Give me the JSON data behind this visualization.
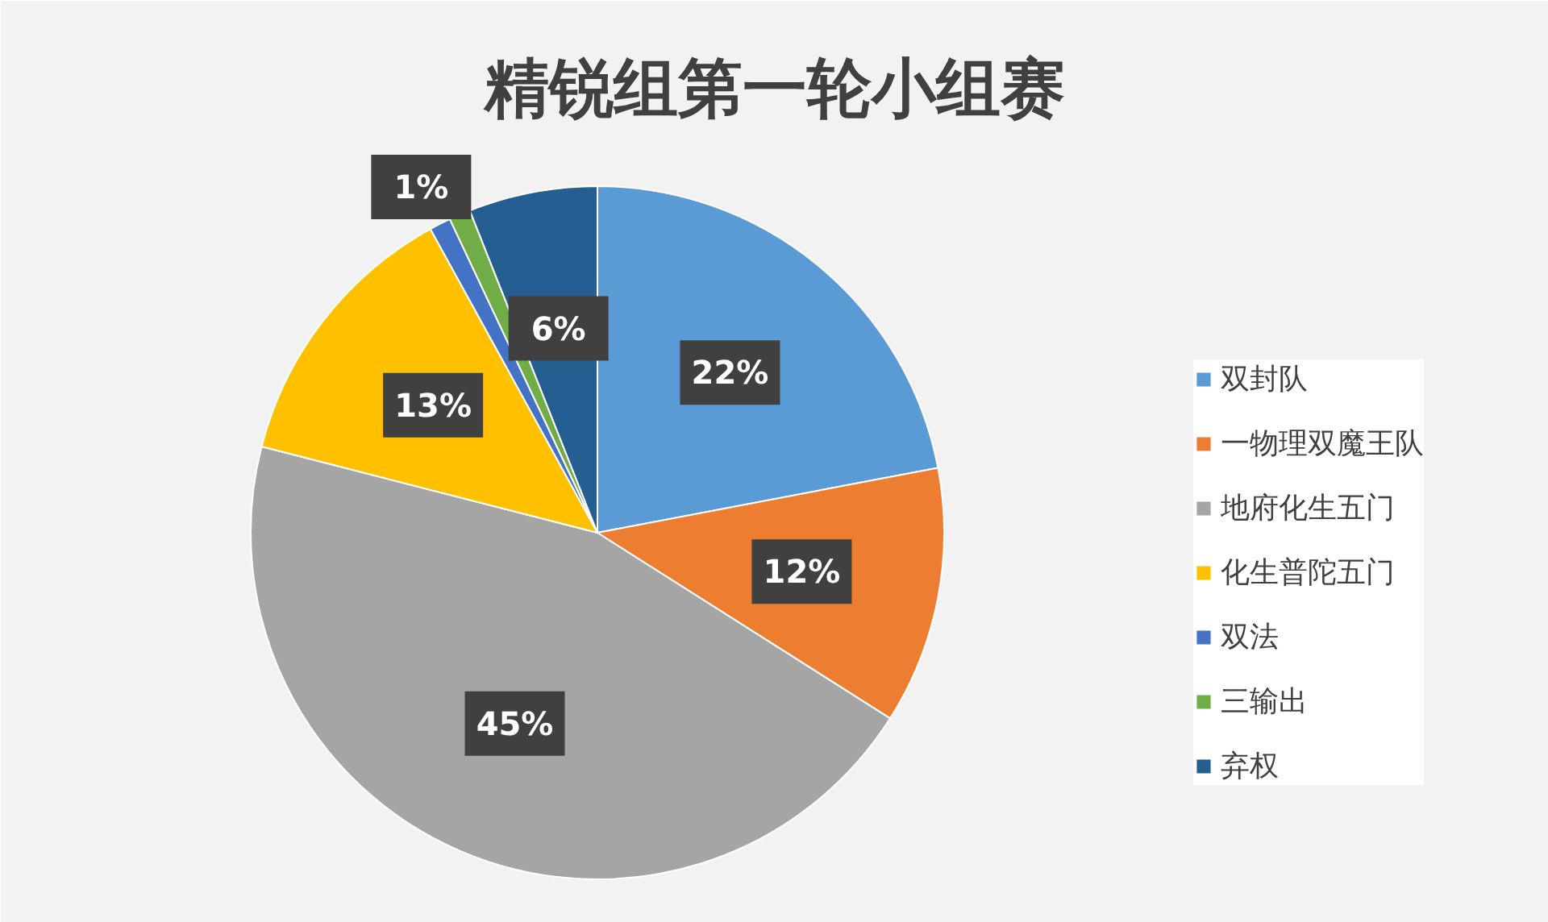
{
  "chart_data": {
    "type": "pie",
    "title": "精锐组第一轮小组赛",
    "categories": [
      "双封队",
      "一物理双魔王队",
      "地府化生五门",
      "化生普陀五门",
      "双法",
      "三输出",
      "弃权"
    ],
    "values": [
      22,
      12,
      45,
      13,
      1,
      1,
      6
    ],
    "colors": [
      "#5b9bd5",
      "#ed7d31",
      "#a5a5a5",
      "#ffc000",
      "#4472c4",
      "#70ad47",
      "#255e91"
    ],
    "value_labels": [
      "22%",
      "12%",
      "45%",
      "13%",
      "1%",
      null,
      "6%"
    ],
    "legend": "right"
  }
}
